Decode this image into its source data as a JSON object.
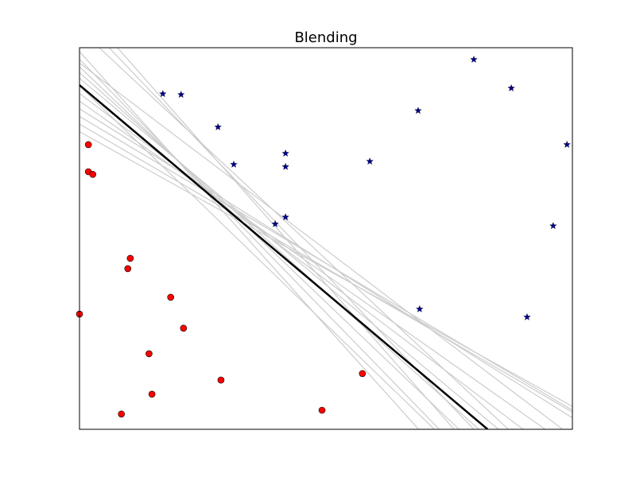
{
  "chart_data": {
    "type": "scatter",
    "title": "Blending",
    "xlabel": "",
    "ylabel": "",
    "xlim": [
      0,
      1
    ],
    "ylim": [
      0,
      1
    ],
    "grid": false,
    "ticks": false,
    "series": [
      {
        "marker": "circle",
        "color": "#ff0000",
        "points": [
          [
            0.018,
            0.746
          ],
          [
            0.018,
            0.675
          ],
          [
            0.027,
            0.668
          ],
          [
            0.103,
            0.448
          ],
          [
            0.098,
            0.421
          ],
          [
            0.185,
            0.346
          ],
          [
            0.0,
            0.302
          ],
          [
            0.211,
            0.265
          ],
          [
            0.141,
            0.198
          ],
          [
            0.287,
            0.129
          ],
          [
            0.147,
            0.092
          ],
          [
            0.085,
            0.04
          ],
          [
            0.492,
            0.05
          ],
          [
            0.574,
            0.146
          ]
        ]
      },
      {
        "marker": "star",
        "color": "#00008b",
        "points": [
          [
            0.169,
            0.879
          ],
          [
            0.206,
            0.877
          ],
          [
            0.281,
            0.792
          ],
          [
            0.313,
            0.694
          ],
          [
            0.418,
            0.723
          ],
          [
            0.418,
            0.688
          ],
          [
            0.589,
            0.702
          ],
          [
            0.687,
            0.835
          ],
          [
            0.8,
            0.969
          ],
          [
            0.876,
            0.894
          ],
          [
            0.989,
            0.746
          ],
          [
            0.961,
            0.533
          ],
          [
            0.418,
            0.556
          ],
          [
            0.397,
            0.538
          ],
          [
            0.69,
            0.315
          ],
          [
            0.908,
            0.294
          ]
        ]
      }
    ],
    "boundary_line": {
      "color": "#000000",
      "points": [
        [
          0.0,
          0.902
        ],
        [
          0.828,
          0.0
        ]
      ]
    },
    "faint_lines": {
      "color": "#cccccc",
      "lines": [
        [
          [
            0.0,
            0.99
          ],
          [
            0.688,
            0.0
          ]
        ],
        [
          [
            0.0,
            0.97
          ],
          [
            0.73,
            0.0
          ]
        ],
        [
          [
            0.0,
            0.95
          ],
          [
            0.77,
            0.0
          ]
        ],
        [
          [
            0.0,
            0.935
          ],
          [
            0.81,
            0.0
          ]
        ],
        [
          [
            0.0,
            0.92
          ],
          [
            0.85,
            0.0
          ]
        ],
        [
          [
            0.0,
            0.88
          ],
          [
            0.9,
            0.0
          ]
        ],
        [
          [
            0.0,
            0.86
          ],
          [
            0.945,
            0.0
          ]
        ],
        [
          [
            0.0,
            0.84
          ],
          [
            1.0,
            0.03
          ]
        ],
        [
          [
            0.0,
            0.82
          ],
          [
            1.0,
            0.05
          ]
        ],
        [
          [
            0.0,
            0.8
          ],
          [
            1.0,
            0.045
          ]
        ],
        [
          [
            0.0,
            0.78
          ],
          [
            1.0,
            0.06
          ]
        ],
        [
          [
            0.077,
            1.0
          ],
          [
            0.76,
            0.0
          ]
        ],
        [
          [
            0.06,
            1.0
          ],
          [
            0.8,
            0.0
          ]
        ],
        [
          [
            0.04,
            1.0
          ],
          [
            0.87,
            0.0
          ]
        ],
        [
          [
            0.0,
            0.96
          ],
          [
            0.98,
            0.0
          ]
        ],
        [
          [
            0.0,
            0.9
          ],
          [
            0.72,
            0.0
          ]
        ]
      ]
    }
  }
}
